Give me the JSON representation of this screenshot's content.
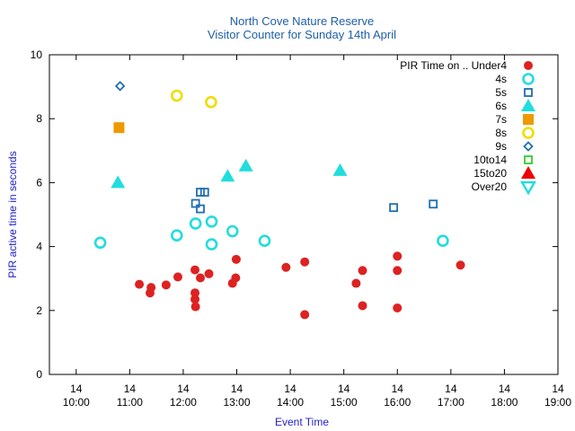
{
  "chart_data": {
    "type": "scatter",
    "title": "North Cove Nature Reserve",
    "subtitle": "Visitor Counter for Sunday 14th April",
    "xlabel": "Event Time",
    "ylabel": "PIR active time in seconds",
    "xlim": [
      9.5,
      19.0
    ],
    "ylim": [
      0,
      10
    ],
    "yticks": [
      0,
      2,
      4,
      6,
      8,
      10
    ],
    "xticks": [
      {
        "value": 10,
        "day": "14",
        "time": "10:00"
      },
      {
        "value": 11,
        "day": "14",
        "time": "11:00"
      },
      {
        "value": 12,
        "day": "14",
        "time": "12:00"
      },
      {
        "value": 13,
        "day": "14",
        "time": "13:00"
      },
      {
        "value": 14,
        "day": "14",
        "time": "14:00"
      },
      {
        "value": 15,
        "day": "14",
        "time": "15:00"
      },
      {
        "value": 16,
        "day": "14",
        "time": "16:00"
      },
      {
        "value": 17,
        "day": "14",
        "time": "17:00"
      },
      {
        "value": 18,
        "day": "14",
        "time": "18:00"
      },
      {
        "value": 19,
        "day": "14",
        "time": "19:00"
      }
    ],
    "legend_title": "PIR Time on ..",
    "legend_position": "top-right",
    "series": [
      {
        "name": "Under4",
        "marker": "filled-circle",
        "color": "#dd2222",
        "points": [
          [
            11.18,
            2.82
          ],
          [
            11.38,
            2.55
          ],
          [
            11.4,
            2.72
          ],
          [
            11.68,
            2.8
          ],
          [
            11.9,
            3.05
          ],
          [
            12.22,
            3.27
          ],
          [
            12.22,
            2.55
          ],
          [
            12.22,
            2.35
          ],
          [
            12.23,
            2.12
          ],
          [
            12.32,
            3.02
          ],
          [
            12.48,
            3.15
          ],
          [
            12.92,
            2.85
          ],
          [
            12.98,
            3.02
          ],
          [
            12.99,
            3.6
          ],
          [
            13.92,
            3.35
          ],
          [
            14.27,
            3.52
          ],
          [
            14.27,
            1.87
          ],
          [
            15.23,
            2.85
          ],
          [
            15.35,
            3.25
          ],
          [
            15.35,
            2.15
          ],
          [
            16.0,
            3.7
          ],
          [
            16.0,
            3.25
          ],
          [
            16.0,
            2.08
          ],
          [
            17.18,
            3.42
          ]
        ]
      },
      {
        "name": "4s",
        "marker": "open-circle",
        "color": "#22dddd",
        "points": [
          [
            10.45,
            4.12
          ],
          [
            11.88,
            4.35
          ],
          [
            12.23,
            4.72
          ],
          [
            12.53,
            4.78
          ],
          [
            12.53,
            4.07
          ],
          [
            12.92,
            4.48
          ],
          [
            13.52,
            4.18
          ],
          [
            16.85,
            4.18
          ]
        ]
      },
      {
        "name": "5s",
        "marker": "open-square",
        "color": "#1f6faf",
        "points": [
          [
            12.23,
            5.35
          ],
          [
            12.32,
            5.18
          ],
          [
            12.32,
            5.7
          ],
          [
            12.4,
            5.7
          ],
          [
            15.93,
            5.22
          ],
          [
            16.67,
            5.33
          ]
        ]
      },
      {
        "name": "6s",
        "marker": "filled-triangle",
        "color": "#22dddd",
        "points": [
          [
            10.78,
            6.0
          ],
          [
            12.83,
            6.2
          ],
          [
            13.17,
            6.52
          ],
          [
            14.93,
            6.38
          ]
        ]
      },
      {
        "name": "7s",
        "marker": "filled-square",
        "color": "#ee9900",
        "points": [
          [
            10.8,
            7.72
          ]
        ]
      },
      {
        "name": "8s",
        "marker": "open-circle",
        "color": "#eedd00",
        "points": [
          [
            11.88,
            8.72
          ],
          [
            12.52,
            8.52
          ]
        ]
      },
      {
        "name": "9s",
        "marker": "open-diamond",
        "color": "#1f6faf",
        "points": [
          [
            10.82,
            9.02
          ]
        ]
      },
      {
        "name": "10to14",
        "marker": "open-square",
        "color": "#33cc33",
        "points": []
      },
      {
        "name": "15to20",
        "marker": "filled-triangle",
        "color": "#ee0000",
        "points": []
      },
      {
        "name": "Over20",
        "marker": "open-triangle-down",
        "color": "#22dddd",
        "points": []
      }
    ]
  }
}
